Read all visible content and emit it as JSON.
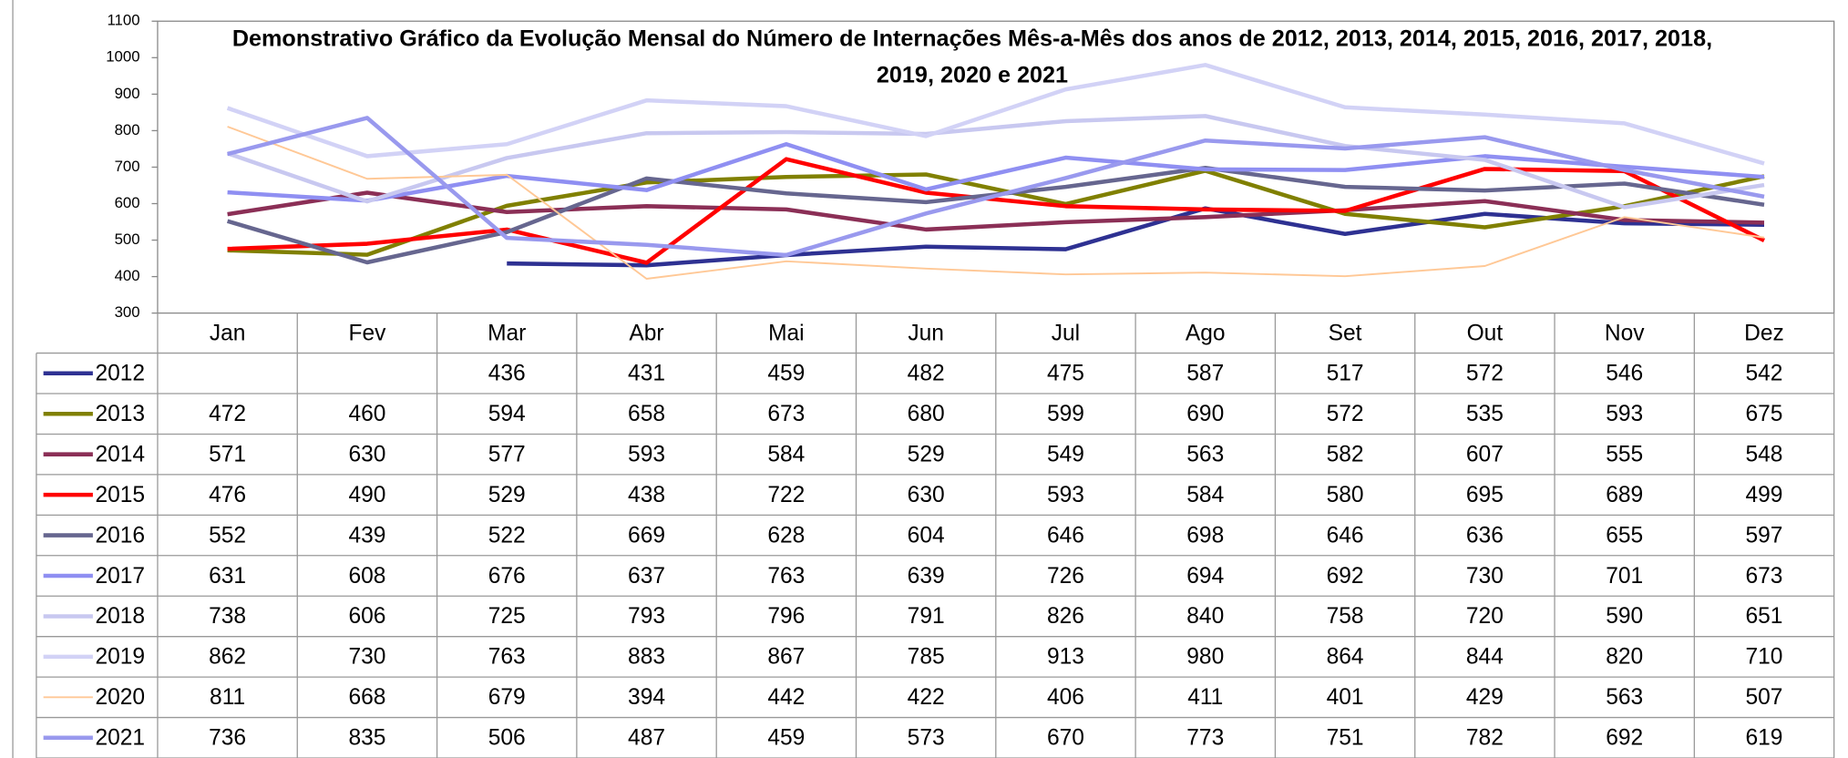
{
  "chart_data": {
    "type": "line",
    "title": "Demonstrativo Gráfico da Evolução Mensal do Número de Internações Mês-a-Mês dos anos de  2012, 2013, 2014, 2015, 2016, 2017, 2018, 2019, 2020 e 2021",
    "categories": [
      "Jan",
      "Fev",
      "Mar",
      "Abr",
      "Mai",
      "Jun",
      "Jul",
      "Ago",
      "Set",
      "Out",
      "Nov",
      "Dez"
    ],
    "ylim": [
      300,
      1100
    ],
    "yticks": [
      300,
      400,
      500,
      600,
      700,
      800,
      900,
      1000,
      1100
    ],
    "grid": false,
    "data_table": true,
    "series": [
      {
        "name": "2012",
        "color": "#2e3192",
        "line_width": 3.5,
        "values": [
          null,
          null,
          436,
          431,
          459,
          482,
          475,
          587,
          517,
          572,
          546,
          542
        ]
      },
      {
        "name": "2013",
        "color": "#808000",
        "line_width": 3.5,
        "values": [
          472,
          460,
          594,
          658,
          673,
          680,
          599,
          690,
          572,
          535,
          593,
          675
        ]
      },
      {
        "name": "2014",
        "color": "#8b2f56",
        "line_width": 3.5,
        "values": [
          571,
          630,
          577,
          593,
          584,
          529,
          549,
          563,
          582,
          607,
          555,
          548
        ]
      },
      {
        "name": "2015",
        "color": "#ff0000",
        "line_width": 3.5,
        "values": [
          476,
          490,
          529,
          438,
          722,
          630,
          593,
          584,
          580,
          695,
          689,
          499
        ]
      },
      {
        "name": "2016",
        "color": "#66668f",
        "line_width": 3.5,
        "values": [
          552,
          439,
          522,
          669,
          628,
          604,
          646,
          698,
          646,
          636,
          655,
          597
        ]
      },
      {
        "name": "2017",
        "color": "#8f8ff2",
        "line_width": 3.5,
        "values": [
          631,
          608,
          676,
          637,
          763,
          639,
          726,
          694,
          692,
          730,
          701,
          673
        ]
      },
      {
        "name": "2018",
        "color": "#c8c8f0",
        "line_width": 3.5,
        "values": [
          738,
          606,
          725,
          793,
          796,
          791,
          826,
          840,
          758,
          720,
          590,
          651
        ]
      },
      {
        "name": "2019",
        "color": "#d2d2f6",
        "line_width": 3.5,
        "values": [
          862,
          730,
          763,
          883,
          867,
          785,
          913,
          980,
          864,
          844,
          820,
          710
        ]
      },
      {
        "name": "2020",
        "color": "#ffc896",
        "line_width": 1.5,
        "values": [
          811,
          668,
          679,
          394,
          442,
          422,
          406,
          411,
          401,
          429,
          563,
          507
        ]
      },
      {
        "name": "2021",
        "color": "#9999ee",
        "line_width": 3.5,
        "values": [
          736,
          835,
          506,
          487,
          459,
          573,
          670,
          773,
          751,
          782,
          692,
          619
        ]
      }
    ]
  }
}
